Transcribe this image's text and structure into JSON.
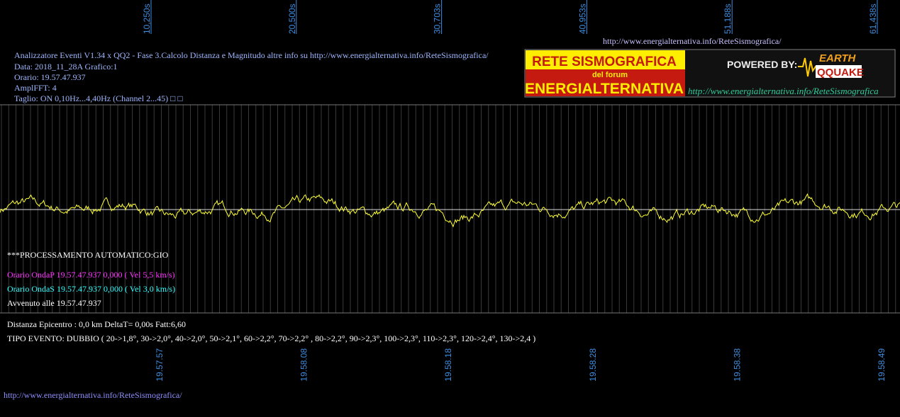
{
  "top_ticks": [
    "10,250s",
    "20,500s",
    "30,703s",
    "40,953s",
    "51,188s",
    "61,438s"
  ],
  "header_url": "http://www.energialternativa.info/ReteSismografica/",
  "info": [
    "Analizzatore Eventi V1.34 x QQ2 - Fase 3.Calcolo Distanza e Magnitudo altre info su http://www.energialternativa.info/ReteSismografica/",
    "Data: 2018_11_28A Grafico:1",
    "Orario: 19.57.47.937",
    "AmplFFT: 4",
    "Taglio: ON 0,10Hz...4,40Hz      (Channel 2...45) □ □"
  ],
  "logo": {
    "line1": "RETE SISMOGRAFICA",
    "line2": "del forum",
    "line3": "ENERGIALTERNATIVA",
    "powered": "POWERED BY:",
    "earth": "EARTH",
    "quake": "QQUAKE",
    "url": "http://www.energialternativa.info/ReteSismografica"
  },
  "processing": "***PROCESSAMENTO AUTOMATICO:GIO",
  "onda_p": "Orario OndaP 19.57.47.937  0,000 ( Vel 5,5 km/s)",
  "onda_s": "Orario OndaS 19.57.47.937  0,000 ( Vel 3,0 km/s)",
  "avvenuto": "Avvenuto alle 19.57.47.937",
  "distanza": "Distanza Epicentro : 0,0 km DeltaT= 0,00s  Fatt:6,60",
  "tipo": "TIPO EVENTO: DUBBIO ( 20->1,8°, 30->2,0°, 40->2,0°, 50->2,1°, 60->2,2°, 70->2,2° , 80->2,2°, 90->2,3°, 100->2,3°, 110->2,3°, 120->2,4°, 130->2,4 )",
  "bottom_ticks": [
    "19.57.57",
    "19.58.08",
    "19.58.18",
    "19.58.28",
    "19.58.38",
    "19.58.49"
  ],
  "footer_url": "http://www.energialternativa.info/ReteSismografica/"
}
